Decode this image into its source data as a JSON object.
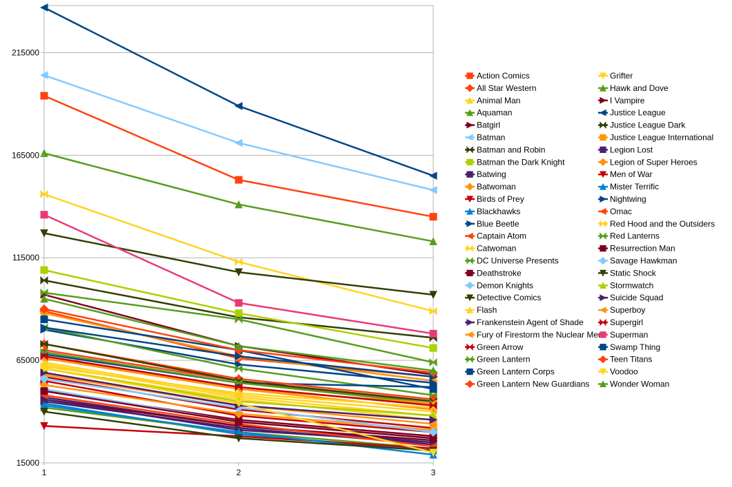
{
  "chart_data": {
    "type": "line",
    "title": "",
    "xlabel": "",
    "ylabel": "",
    "x": [
      1,
      2,
      3
    ],
    "x_tick_labels": [
      "1",
      "2",
      "3"
    ],
    "ylim": [
      15000,
      238000
    ],
    "y_ticks": [
      15000,
      65000,
      115000,
      165000,
      215000
    ],
    "y_tick_labels": [
      "15000",
      "65000",
      "115000",
      "165000",
      "215000"
    ],
    "grid": "horizontal",
    "legend_position": "right",
    "series": [
      {
        "name": "Action Comics",
        "color": "#ff420e",
        "marker": "square",
        "values": [
          194000,
          153000,
          135000
        ]
      },
      {
        "name": "All Star Western",
        "color": "#ff420e",
        "marker": "diamond",
        "values": [
          89000,
          66000,
          57000
        ]
      },
      {
        "name": "Animal Man",
        "color": "#ffd320",
        "marker": "triangle-up",
        "values": [
          64000,
          48000,
          40000
        ]
      },
      {
        "name": "Aquaman",
        "color": "#579d1c",
        "marker": "triangle-up",
        "values": [
          166000,
          141000,
          123000
        ]
      },
      {
        "name": "Batgirl",
        "color": "#7e0021",
        "marker": "triangle-right",
        "values": [
          97000,
          72000,
          58000
        ]
      },
      {
        "name": "Batman",
        "color": "#83caff",
        "marker": "triangle-left",
        "values": [
          204000,
          171000,
          148000
        ]
      },
      {
        "name": "Batman and Robin",
        "color": "#314004",
        "marker": "bowtie",
        "values": [
          104000,
          86000,
          76000
        ]
      },
      {
        "name": "Batman the Dark Knight",
        "color": "#aecf00",
        "marker": "square",
        "values": [
          109000,
          88000,
          71000
        ]
      },
      {
        "name": "Batwing",
        "color": "#4b1f6f",
        "marker": "square",
        "values": [
          47000,
          33000,
          25000
        ]
      },
      {
        "name": "Batwoman",
        "color": "#ff950e",
        "marker": "diamond",
        "values": [
          88000,
          67000,
          55000
        ]
      },
      {
        "name": "Birds of Prey",
        "color": "#c5000b",
        "marker": "triangle-down",
        "values": [
          57000,
          41000,
          32000
        ]
      },
      {
        "name": "Blackhawks",
        "color": "#0084d1",
        "marker": "triangle-up",
        "values": [
          44000,
          29000,
          21000
        ]
      },
      {
        "name": "Blue Beetle",
        "color": "#004586",
        "marker": "triangle-right",
        "values": [
          80000,
          63000,
          54000
        ]
      },
      {
        "name": "Captain Atom",
        "color": "#ff420e",
        "marker": "triangle-left",
        "values": [
          70000,
          55000,
          44000
        ]
      },
      {
        "name": "Catwoman",
        "color": "#ffd320",
        "marker": "bowtie",
        "values": [
          146000,
          113000,
          89000
        ]
      },
      {
        "name": "DC Universe Presents",
        "color": "#579d1c",
        "marker": "bowtie",
        "values": [
          81000,
          61000,
          48000
        ]
      },
      {
        "name": "Deathstroke",
        "color": "#7e0021",
        "marker": "square",
        "values": [
          50000,
          36000,
          28000
        ]
      },
      {
        "name": "Demon Knights",
        "color": "#83caff",
        "marker": "diamond",
        "values": [
          51000,
          35000,
          27000
        ]
      },
      {
        "name": "Detective Comics",
        "color": "#314004",
        "marker": "triangle-down",
        "values": [
          127000,
          108000,
          97000
        ]
      },
      {
        "name": "Flash",
        "color": "#ffd320",
        "marker": "triangle-up",
        "values": [
          63000,
          47000,
          38000
        ]
      },
      {
        "name": "Frankenstein Agent of Shade",
        "color": "#4b1f6f",
        "marker": "triangle-right",
        "values": [
          45000,
          32000,
          24000
        ]
      },
      {
        "name": "Fury of Firestorm the Nuclear Men",
        "color": "#ff950e",
        "marker": "triangle-left",
        "values": [
          67000,
          51000,
          41000
        ]
      },
      {
        "name": "Green Arrow",
        "color": "#c5000b",
        "marker": "bowtie",
        "values": [
          55000,
          38000,
          30000
        ]
      },
      {
        "name": "Green Lantern",
        "color": "#579d1c",
        "marker": "bowtie",
        "values": [
          98000,
          85000,
          64000
        ]
      },
      {
        "name": "Green Lantern Corps",
        "color": "#004586",
        "marker": "square",
        "values": [
          68000,
          54000,
          52000
        ]
      },
      {
        "name": "Green Lantern New Guardians",
        "color": "#ff420e",
        "marker": "diamond",
        "values": [
          73000,
          56000,
          46000
        ]
      },
      {
        "name": "Grifter",
        "color": "#ffd320",
        "marker": "triangle-down",
        "values": [
          61000,
          46000,
          36000
        ]
      },
      {
        "name": "Hawk and Dove",
        "color": "#579d1c",
        "marker": "triangle-up",
        "values": [
          42000,
          30000,
          22000
        ]
      },
      {
        "name": "I Vampire",
        "color": "#7e0021",
        "marker": "triangle-right",
        "values": [
          46000,
          33000,
          26000
        ]
      },
      {
        "name": "Justice League",
        "color": "#004586",
        "marker": "triangle-left",
        "values": [
          237000,
          189000,
          155000
        ]
      },
      {
        "name": "Justice League Dark",
        "color": "#314004",
        "marker": "bowtie",
        "values": [
          73000,
          55000,
          45000
        ]
      },
      {
        "name": "Justice League International",
        "color": "#ff950e",
        "marker": "square",
        "values": [
          58000,
          43000,
          34000
        ]
      },
      {
        "name": "Legion Lost",
        "color": "#4b1f6f",
        "marker": "square",
        "values": [
          46000,
          31000,
          25000
        ]
      },
      {
        "name": "Legion of Super Heroes",
        "color": "#ff950e",
        "marker": "diamond",
        "values": [
          53000,
          39000,
          31000
        ]
      },
      {
        "name": "Men of War",
        "color": "#c5000b",
        "marker": "triangle-down",
        "values": [
          33000,
          28000,
          22000
        ]
      },
      {
        "name": "Mister Terrific",
        "color": "#0084d1",
        "marker": "triangle-up",
        "values": [
          43000,
          30000,
          19000
        ]
      },
      {
        "name": "Nightwing",
        "color": "#004586",
        "marker": "triangle-right",
        "values": [
          81000,
          67000,
          57000
        ]
      },
      {
        "name": "Omac",
        "color": "#ff420e",
        "marker": "triangle-left",
        "values": [
          48000,
          34000,
          23000
        ]
      },
      {
        "name": "Red Hood and the Outsiders",
        "color": "#ffd320",
        "marker": "bowtie",
        "values": [
          62000,
          49000,
          42000
        ]
      },
      {
        "name": "Red Lanterns",
        "color": "#579d1c",
        "marker": "bowtie",
        "values": [
          69000,
          54000,
          44000
        ]
      },
      {
        "name": "Resurrection Man",
        "color": "#7e0021",
        "marker": "square",
        "values": [
          50000,
          35000,
          27000
        ]
      },
      {
        "name": "Savage Hawkman",
        "color": "#83caff",
        "marker": "diamond",
        "values": [
          56000,
          42000,
          30000
        ]
      },
      {
        "name": "Static Shock",
        "color": "#314004",
        "marker": "triangle-down",
        "values": [
          40000,
          27000,
          21000
        ]
      },
      {
        "name": "Stormwatch",
        "color": "#aecf00",
        "marker": "triangle-up",
        "values": [
          61000,
          45000,
          38000
        ]
      },
      {
        "name": "Suicide Squad",
        "color": "#4b1f6f",
        "marker": "triangle-right",
        "values": [
          59000,
          43000,
          36000
        ]
      },
      {
        "name": "Superboy",
        "color": "#ff950e",
        "marker": "triangle-left",
        "values": [
          66000,
          51000,
          44000
        ]
      },
      {
        "name": "Supergirl",
        "color": "#c5000b",
        "marker": "bowtie",
        "values": [
          67000,
          52000,
          43000
        ]
      },
      {
        "name": "Superman",
        "color": "#e83a7b",
        "marker": "square",
        "values": [
          136000,
          93000,
          78000
        ]
      },
      {
        "name": "Swamp Thing",
        "color": "#004586",
        "marker": "square",
        "values": [
          85000,
          70000,
          51000
        ]
      },
      {
        "name": "Teen Titans",
        "color": "#ff420e",
        "marker": "diamond",
        "values": [
          90000,
          70000,
          59000
        ]
      },
      {
        "name": "Voodoo",
        "color": "#ffd320",
        "marker": "triangle-down",
        "values": [
          61000,
          44000,
          20000
        ]
      },
      {
        "name": "Wonder Woman",
        "color": "#579d1c",
        "marker": "triangle-up",
        "values": [
          95000,
          72000,
          60000
        ]
      }
    ]
  }
}
